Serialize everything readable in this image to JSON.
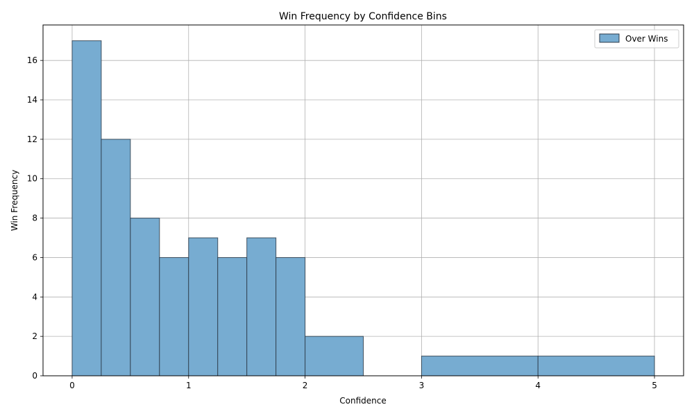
{
  "chart_data": {
    "type": "bar",
    "title": "Win Frequency by Confidence Bins",
    "xlabel": "Confidence",
    "ylabel": "Win Frequency",
    "xlim": [
      -0.25,
      5.25
    ],
    "ylim": [
      0,
      17.8
    ],
    "x_ticks": [
      0,
      1,
      2,
      3,
      4,
      5
    ],
    "y_ticks": [
      0,
      2,
      4,
      6,
      8,
      10,
      12,
      14,
      16
    ],
    "grid": true,
    "legend_position": "top-right",
    "bar_color": "#77acd1",
    "edge_color": "#2b3a48",
    "series": [
      {
        "name": "Over Wins",
        "bins": [
          {
            "start": 0.0,
            "end": 0.25,
            "value": 17
          },
          {
            "start": 0.25,
            "end": 0.5,
            "value": 12
          },
          {
            "start": 0.5,
            "end": 0.75,
            "value": 8
          },
          {
            "start": 0.75,
            "end": 1.0,
            "value": 6
          },
          {
            "start": 1.0,
            "end": 1.25,
            "value": 7
          },
          {
            "start": 1.25,
            "end": 1.5,
            "value": 6
          },
          {
            "start": 1.5,
            "end": 1.75,
            "value": 7
          },
          {
            "start": 1.75,
            "end": 2.0,
            "value": 6
          },
          {
            "start": 2.0,
            "end": 2.5,
            "value": 2
          },
          {
            "start": 2.5,
            "end": 3.0,
            "value": 0
          },
          {
            "start": 3.0,
            "end": 4.0,
            "value": 1
          },
          {
            "start": 4.0,
            "end": 5.0,
            "value": 1
          }
        ]
      }
    ]
  }
}
